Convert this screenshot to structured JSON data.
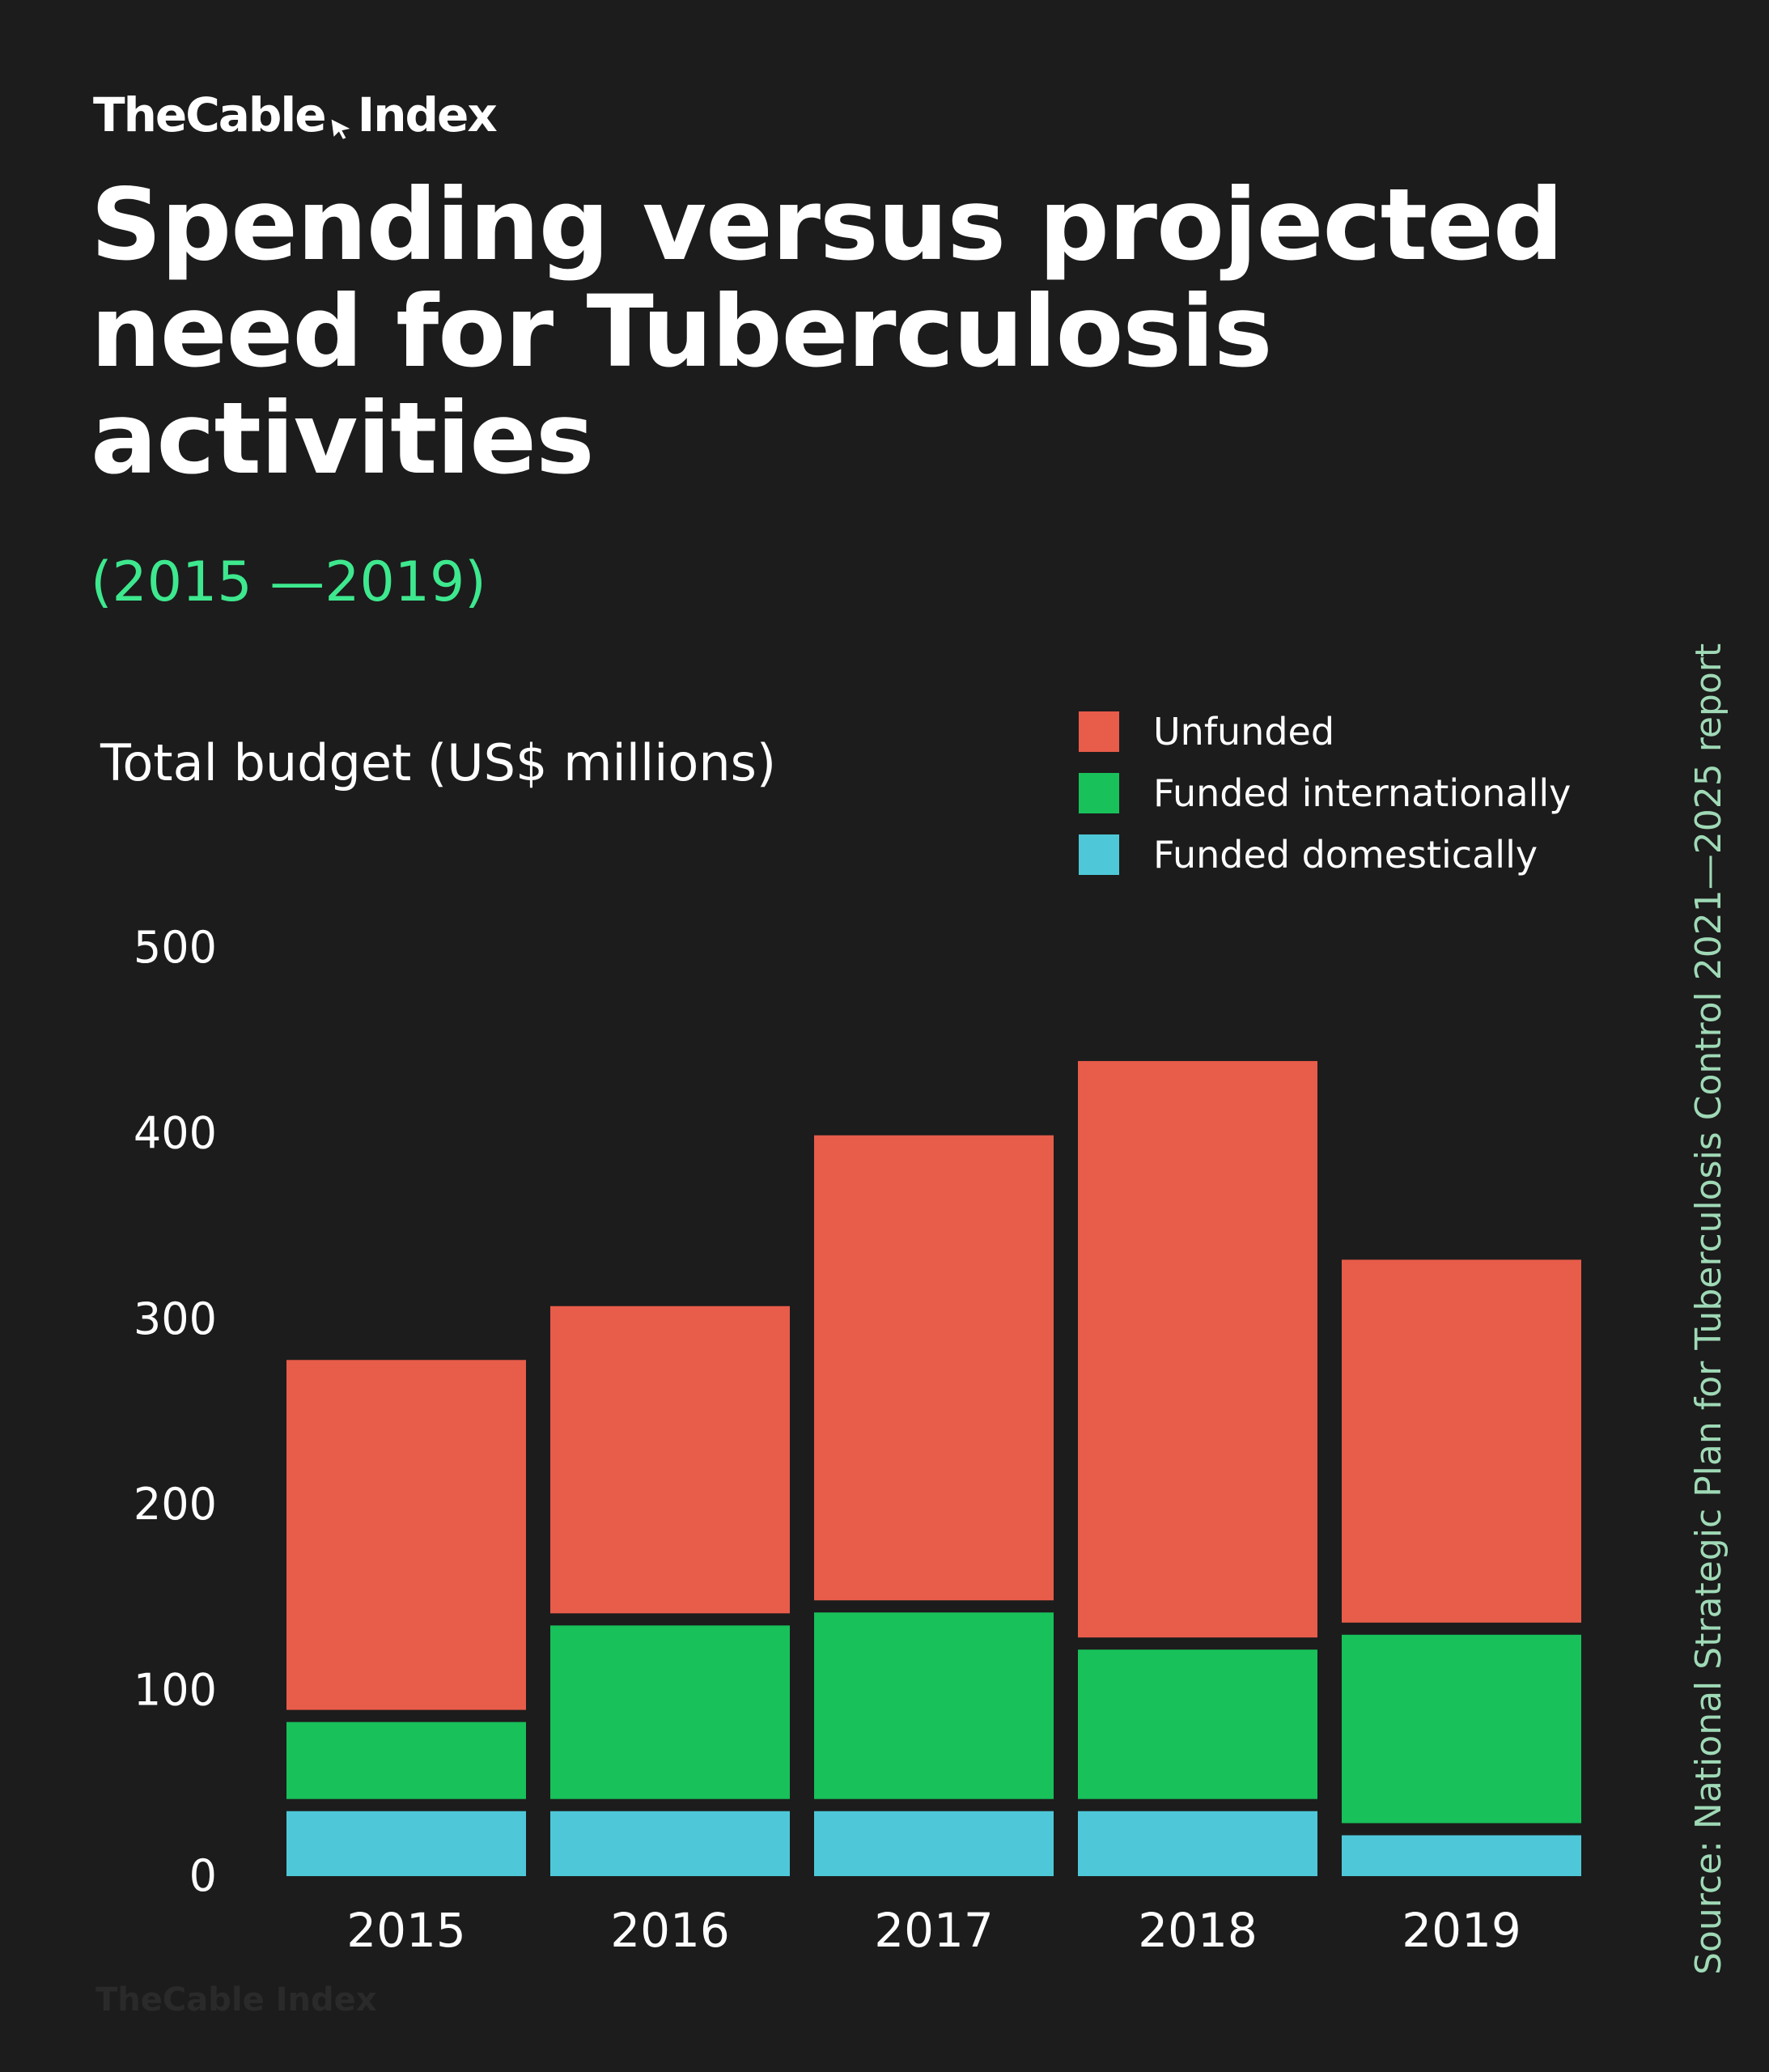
{
  "brand": {
    "name_part1": "TheCable",
    "name_part2": "Index",
    "watermark": "TheCable Index"
  },
  "title": "Spending versus projected need for Tuberculosis activities",
  "subtitle": "(2015 —2019)",
  "source": "Source: National Strategic Plan for Tuberculosis Control 2021—2025 report",
  "colors": {
    "background": "#1c1c1c",
    "unfunded": "#e85c4a",
    "funded_internationally": "#18c15a",
    "funded_domestically": "#4ec8d8",
    "subtitle": "#3ee88e"
  },
  "chart_data": {
    "type": "bar",
    "stacked": true,
    "title": "Spending versus projected need for Tuberculosis activities",
    "subtitle": "(2015 —2019)",
    "ylabel": "Total budget (US$ millions)",
    "xlabel": "",
    "ylim": [
      0,
      500
    ],
    "yticks": [
      "0",
      "100",
      "200",
      "300",
      "400",
      "500"
    ],
    "categories": [
      "2015",
      "2016",
      "2017",
      "2018",
      "2019"
    ],
    "series": [
      {
        "name": "Funded domestically",
        "color": "#4ec8d8",
        "values": [
          35,
          35,
          35,
          35,
          22
        ]
      },
      {
        "name": "Funded internationally",
        "color": "#18c15a",
        "values": [
          48,
          100,
          107,
          87,
          108
        ]
      },
      {
        "name": "Unfunded",
        "color": "#e85c4a",
        "values": [
          195,
          172,
          257,
          317,
          202
        ]
      }
    ],
    "legend": [
      "Unfunded",
      "Funded internationally",
      "Funded domestically"
    ],
    "legend_position": "top-right",
    "grid": false
  }
}
